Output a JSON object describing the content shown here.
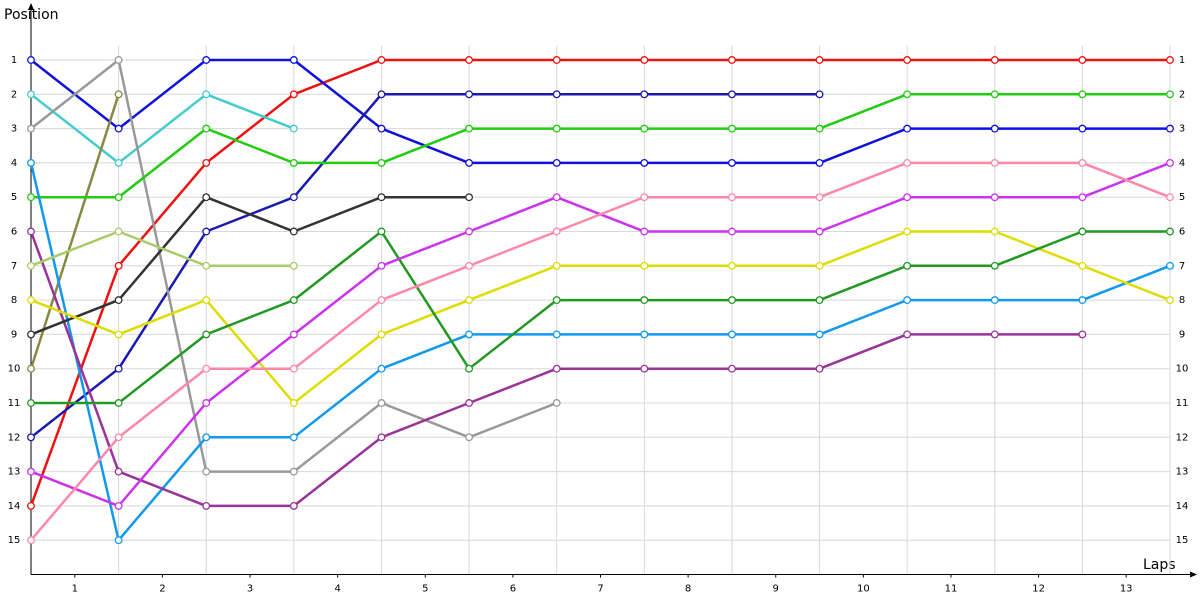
{
  "chart_data": {
    "type": "line",
    "y_label": "Position",
    "x_label": "Laps",
    "x": [
      0,
      1,
      2,
      3,
      4,
      5,
      6,
      7,
      8,
      9,
      10,
      11,
      12,
      13
    ],
    "xlim": [
      0,
      13
    ],
    "xticks": [
      {
        "value": 0.5,
        "label": "1"
      },
      {
        "value": 1.5,
        "label": "2"
      },
      {
        "value": 2.5,
        "label": "3"
      },
      {
        "value": 3.5,
        "label": "4"
      },
      {
        "value": 4.5,
        "label": "5"
      },
      {
        "value": 5.5,
        "label": "6"
      },
      {
        "value": 6.5,
        "label": "7"
      },
      {
        "value": 7.5,
        "label": "8"
      },
      {
        "value": 8.5,
        "label": "9"
      },
      {
        "value": 9.5,
        "label": "10"
      },
      {
        "value": 10.5,
        "label": "11"
      },
      {
        "value": 11.5,
        "label": "12"
      },
      {
        "value": 12.5,
        "label": "13"
      }
    ],
    "ylim": [
      16,
      0
    ],
    "yticks": [
      1,
      2,
      3,
      4,
      5,
      6,
      7,
      8,
      9,
      10,
      11,
      12,
      13,
      14,
      15
    ],
    "grid": true,
    "series": [
      {
        "color": "#ee1111",
        "values": [
          14,
          7,
          4,
          2,
          1,
          1,
          1,
          1,
          1,
          1,
          1,
          1,
          1,
          1
        ]
      },
      {
        "color": "#1111dd",
        "values": [
          1,
          3,
          1,
          1,
          3,
          4,
          4,
          4,
          4,
          4,
          3,
          3,
          3,
          3
        ]
      },
      {
        "color": "#1a1ab0",
        "values": [
          12,
          10,
          6,
          5,
          2,
          2,
          2,
          2,
          2,
          2,
          null,
          null,
          null,
          null
        ]
      },
      {
        "color": "#44cccc",
        "values": [
          2,
          4,
          2,
          3,
          null,
          null,
          null,
          null,
          null,
          null,
          null,
          null,
          null,
          null
        ]
      },
      {
        "color": "#999999",
        "values": [
          3,
          1,
          13,
          13,
          11,
          12,
          11,
          null,
          null,
          null,
          null,
          null,
          null,
          null
        ]
      },
      {
        "color": "#888844",
        "values": [
          10,
          2,
          null,
          null,
          null,
          null,
          null,
          null,
          null,
          null,
          null,
          null,
          null,
          null
        ]
      },
      {
        "color": "#22cc11",
        "values": [
          5,
          5,
          3,
          4,
          4,
          3,
          3,
          3,
          3,
          3,
          2,
          2,
          2,
          2
        ]
      },
      {
        "color": "#1199ee",
        "values": [
          4,
          15,
          12,
          12,
          10,
          9,
          9,
          9,
          9,
          9,
          8,
          8,
          8,
          7
        ]
      },
      {
        "color": "#993399",
        "values": [
          6,
          13,
          14,
          14,
          12,
          11,
          10,
          10,
          10,
          10,
          9,
          9,
          9,
          null
        ]
      },
      {
        "color": "#333333",
        "values": [
          9,
          8,
          5,
          6,
          5,
          5,
          null,
          null,
          null,
          null,
          null,
          null,
          null,
          null
        ]
      },
      {
        "color": "#aacc66",
        "values": [
          7,
          6,
          7,
          7,
          null,
          null,
          null,
          null,
          null,
          null,
          null,
          null,
          null,
          null
        ]
      },
      {
        "color": "#dddd00",
        "values": [
          8,
          9,
          8,
          11,
          9,
          8,
          7,
          7,
          7,
          7,
          6,
          6,
          7,
          8
        ]
      },
      {
        "color": "#229922",
        "values": [
          11,
          11,
          9,
          8,
          6,
          10,
          8,
          8,
          8,
          8,
          7,
          7,
          6,
          6
        ]
      },
      {
        "color": "#cc33ee",
        "values": [
          13,
          14,
          11,
          9,
          7,
          6,
          5,
          6,
          6,
          6,
          5,
          5,
          5,
          4
        ]
      },
      {
        "color": "#ff88aa",
        "values": [
          15,
          12,
          10,
          10,
          8,
          7,
          6,
          5,
          5,
          5,
          4,
          4,
          4,
          5
        ]
      }
    ]
  }
}
